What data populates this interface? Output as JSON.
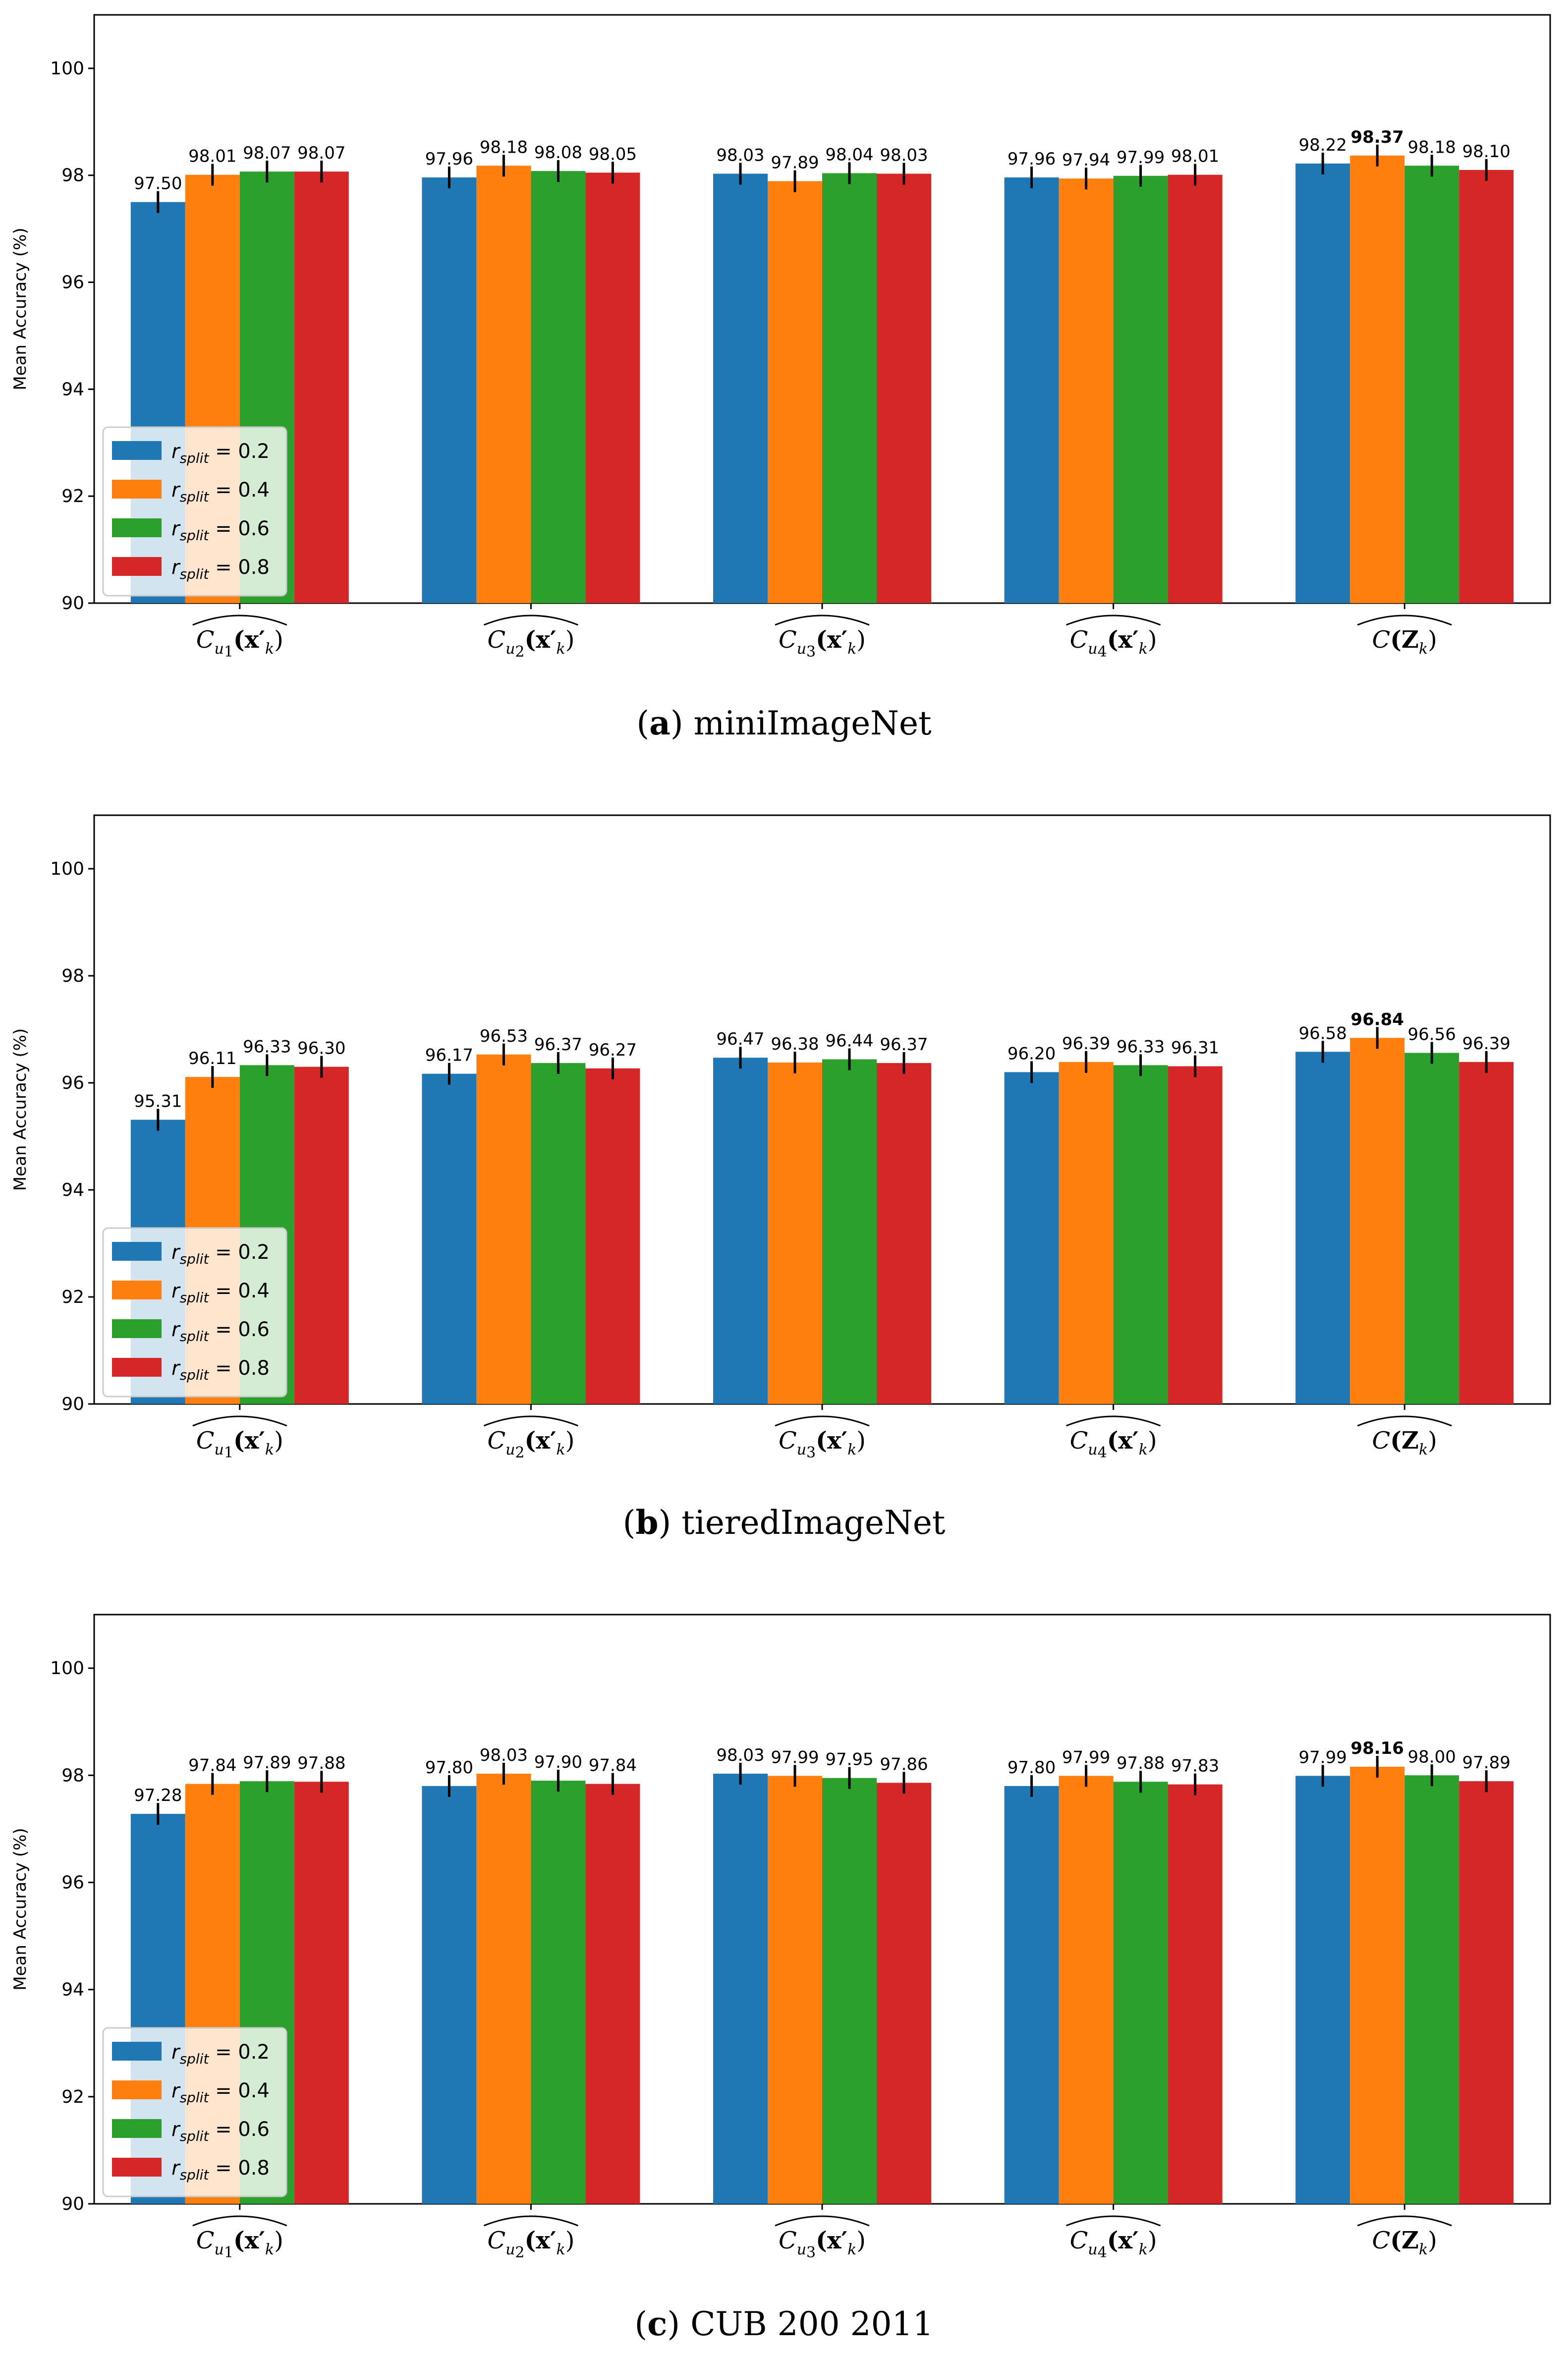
{
  "chart_data": [
    {
      "type": "bar",
      "caption": {
        "letter": "a",
        "text": "miniImageNet"
      },
      "ylabel": "Mean Accuracy (%)",
      "ylim": [
        90,
        101
      ],
      "yticks": [
        "90",
        "92",
        "94",
        "96",
        "98",
        "100"
      ],
      "categories": [
        "C_{u1}(x'_k)",
        "C_{u2}(x'_k)",
        "C_{u3}(x'_k)",
        "C_{u4}(x'_k)",
        "C(Z_k)"
      ],
      "series": [
        {
          "name": "r_split = 0.2",
          "values": [
            97.5,
            97.96,
            98.03,
            97.96,
            98.22
          ],
          "labels": [
            "97.50",
            "97.96",
            "98.03",
            "97.96",
            "98.22"
          ]
        },
        {
          "name": "r_split = 0.4",
          "values": [
            98.01,
            98.18,
            97.89,
            97.94,
            98.37
          ],
          "labels": [
            "98.01",
            "98.18",
            "97.89",
            "97.94",
            "98.37"
          ]
        },
        {
          "name": "r_split = 0.6",
          "values": [
            98.07,
            98.08,
            98.04,
            97.99,
            98.18
          ],
          "labels": [
            "98.07",
            "98.08",
            "98.04",
            "97.99",
            "98.18"
          ]
        },
        {
          "name": "r_split = 0.8",
          "values": [
            98.07,
            98.05,
            98.03,
            98.01,
            98.1
          ],
          "labels": [
            "98.07",
            "98.05",
            "98.03",
            "98.01",
            "98.10"
          ]
        }
      ],
      "best": {
        "series": 1,
        "category": 4
      },
      "legend": "lower-left"
    },
    {
      "type": "bar",
      "caption": {
        "letter": "b",
        "text": "tieredImageNet"
      },
      "ylabel": "Mean Accuracy (%)",
      "ylim": [
        90,
        101
      ],
      "yticks": [
        "90",
        "92",
        "94",
        "96",
        "98",
        "100"
      ],
      "categories": [
        "C_{u1}(x'_k)",
        "C_{u2}(x'_k)",
        "C_{u3}(x'_k)",
        "C_{u4}(x'_k)",
        "C(Z_k)"
      ],
      "series": [
        {
          "name": "r_split = 0.2",
          "values": [
            95.31,
            96.17,
            96.47,
            96.2,
            96.58
          ],
          "labels": [
            "95.31",
            "96.17",
            "96.47",
            "96.20",
            "96.58"
          ]
        },
        {
          "name": "r_split = 0.4",
          "values": [
            96.11,
            96.53,
            96.38,
            96.39,
            96.84
          ],
          "labels": [
            "96.11",
            "96.53",
            "96.38",
            "96.39",
            "96.84"
          ]
        },
        {
          "name": "r_split = 0.6",
          "values": [
            96.33,
            96.37,
            96.44,
            96.33,
            96.56
          ],
          "labels": [
            "96.33",
            "96.37",
            "96.44",
            "96.33",
            "96.56"
          ]
        },
        {
          "name": "r_split = 0.8",
          "values": [
            96.3,
            96.27,
            96.37,
            96.31,
            96.39
          ],
          "labels": [
            "96.30",
            "96.27",
            "96.37",
            "96.31",
            "96.39"
          ]
        }
      ],
      "best": {
        "series": 1,
        "category": 4
      },
      "legend": "lower-left"
    },
    {
      "type": "bar",
      "caption": {
        "letter": "c",
        "text": "CUB 200 2011"
      },
      "ylabel": "Mean Accuracy (%)",
      "ylim": [
        90,
        101
      ],
      "yticks": [
        "90",
        "92",
        "94",
        "96",
        "98",
        "100"
      ],
      "categories": [
        "C_{u1}(x'_k)",
        "C_{u2}(x'_k)",
        "C_{u3}(x'_k)",
        "C_{u4}(x'_k)",
        "C(Z_k)"
      ],
      "series": [
        {
          "name": "r_split = 0.2",
          "values": [
            97.28,
            97.8,
            98.03,
            97.8,
            97.99
          ],
          "labels": [
            "97.28",
            "97.80",
            "98.03",
            "97.80",
            "97.99"
          ]
        },
        {
          "name": "r_split = 0.4",
          "values": [
            97.84,
            98.03,
            97.99,
            97.99,
            98.16
          ],
          "labels": [
            "97.84",
            "98.03",
            "97.99",
            "97.99",
            "98.16"
          ]
        },
        {
          "name": "r_split = 0.6",
          "values": [
            97.89,
            97.9,
            97.95,
            97.88,
            98.0
          ],
          "labels": [
            "97.89",
            "97.90",
            "97.95",
            "97.88",
            "98.00"
          ]
        },
        {
          "name": "r_split = 0.8",
          "values": [
            97.88,
            97.84,
            97.86,
            97.83,
            97.89
          ],
          "labels": [
            "97.88",
            "97.84",
            "97.86",
            "97.83",
            "97.89"
          ]
        }
      ],
      "best": {
        "series": 1,
        "category": 4
      },
      "legend": "lower-left"
    }
  ],
  "legend_entries": [
    {
      "symbol": "r",
      "subscript": "split",
      "rest": " = 0.2"
    },
    {
      "symbol": "r",
      "subscript": "split",
      "rest": " = 0.4"
    },
    {
      "symbol": "r",
      "subscript": "split",
      "rest": " = 0.6"
    },
    {
      "symbol": "r",
      "subscript": "split",
      "rest": " = 0.8"
    }
  ],
  "category_labels": [
    {
      "main": "C",
      "sub": "u",
      "subsub": "1",
      "arg": "(x′",
      "argsub": "k",
      "close": ")"
    },
    {
      "main": "C",
      "sub": "u",
      "subsub": "2",
      "arg": "(x′",
      "argsub": "k",
      "close": ")"
    },
    {
      "main": "C",
      "sub": "u",
      "subsub": "3",
      "arg": "(x′",
      "argsub": "k",
      "close": ")"
    },
    {
      "main": "C",
      "sub": "u",
      "subsub": "4",
      "arg": "(x′",
      "argsub": "k",
      "close": ")"
    },
    {
      "main": "C",
      "sub": "",
      "subsub": "",
      "arg": "(Z",
      "argsub": "k",
      "close": ")"
    }
  ],
  "colors": {
    "series": [
      "#1f77b4",
      "#ff7f0e",
      "#2ca02c",
      "#d62728"
    ],
    "axis": "#000000",
    "background": "#ffffff"
  }
}
